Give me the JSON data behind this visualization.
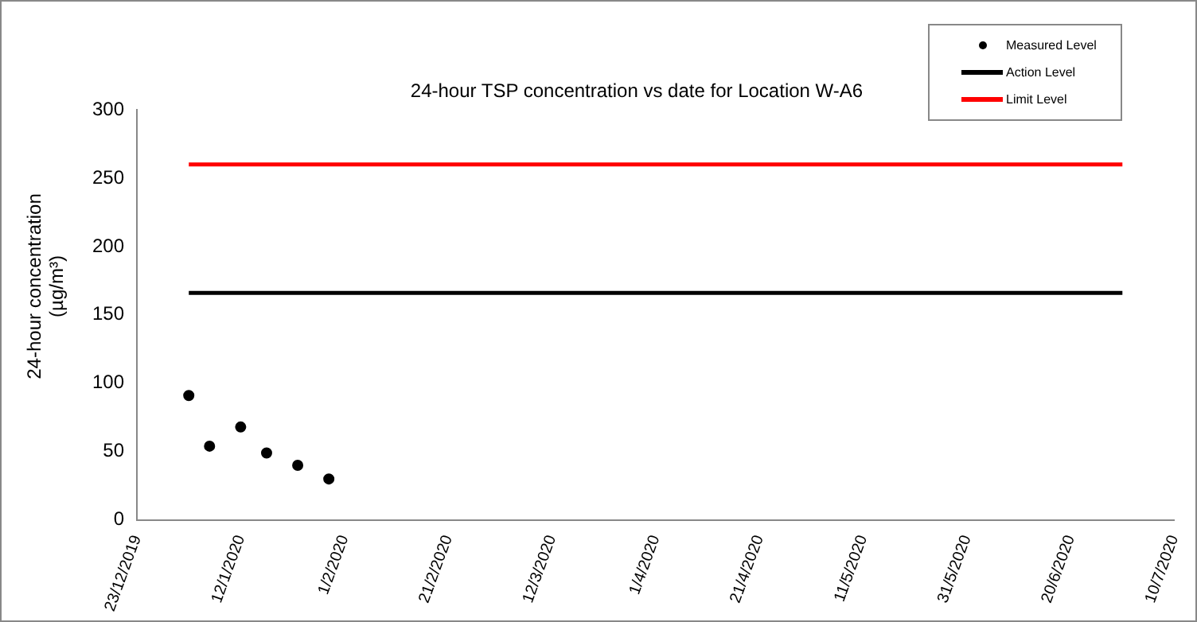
{
  "chart_data": {
    "type": "scatter",
    "title": "24-hour TSP concentration vs date for Location W-A6",
    "ylabel": "24-hour concentration\n(µg/m³)",
    "series": [
      {
        "name": "Measured Level",
        "marker": "circle",
        "color": "#000000",
        "x": [
          "2020-01-02",
          "2020-01-06",
          "2020-01-12",
          "2020-01-17",
          "2020-01-23",
          "2020-01-29"
        ],
        "values": [
          91,
          54,
          68,
          49,
          40,
          30
        ]
      },
      {
        "name": "Action Level",
        "type": "line",
        "marker": "none",
        "color": "#000000",
        "x": [
          "2020-01-02",
          "2020-06-30"
        ],
        "values": [
          166,
          166
        ]
      },
      {
        "name": "Limit Level",
        "type": "line",
        "marker": "none",
        "color": "#ff0000",
        "x": [
          "2020-01-02",
          "2020-06-30"
        ],
        "values": [
          260,
          260
        ]
      }
    ],
    "xlim": [
      "2019-12-23",
      "2020-07-10"
    ],
    "xticks": [
      {
        "value": "2019-12-23",
        "label": "23/12/2019"
      },
      {
        "value": "2020-01-12",
        "label": "12/1/2020"
      },
      {
        "value": "2020-02-01",
        "label": "1/2/2020"
      },
      {
        "value": "2020-02-21",
        "label": "21/2/2020"
      },
      {
        "value": "2020-03-12",
        "label": "12/3/2020"
      },
      {
        "value": "2020-04-01",
        "label": "1/4/2020"
      },
      {
        "value": "2020-04-21",
        "label": "21/4/2020"
      },
      {
        "value": "2020-05-11",
        "label": "11/5/2020"
      },
      {
        "value": "2020-05-31",
        "label": "31/5/2020"
      },
      {
        "value": "2020-06-20",
        "label": "20/6/2020"
      },
      {
        "value": "2020-07-10",
        "label": "10/7/2020"
      }
    ],
    "ylim": [
      0,
      300
    ],
    "yticks": [
      0,
      50,
      100,
      150,
      200,
      250,
      300
    ],
    "grid": false,
    "legend": "top right"
  }
}
